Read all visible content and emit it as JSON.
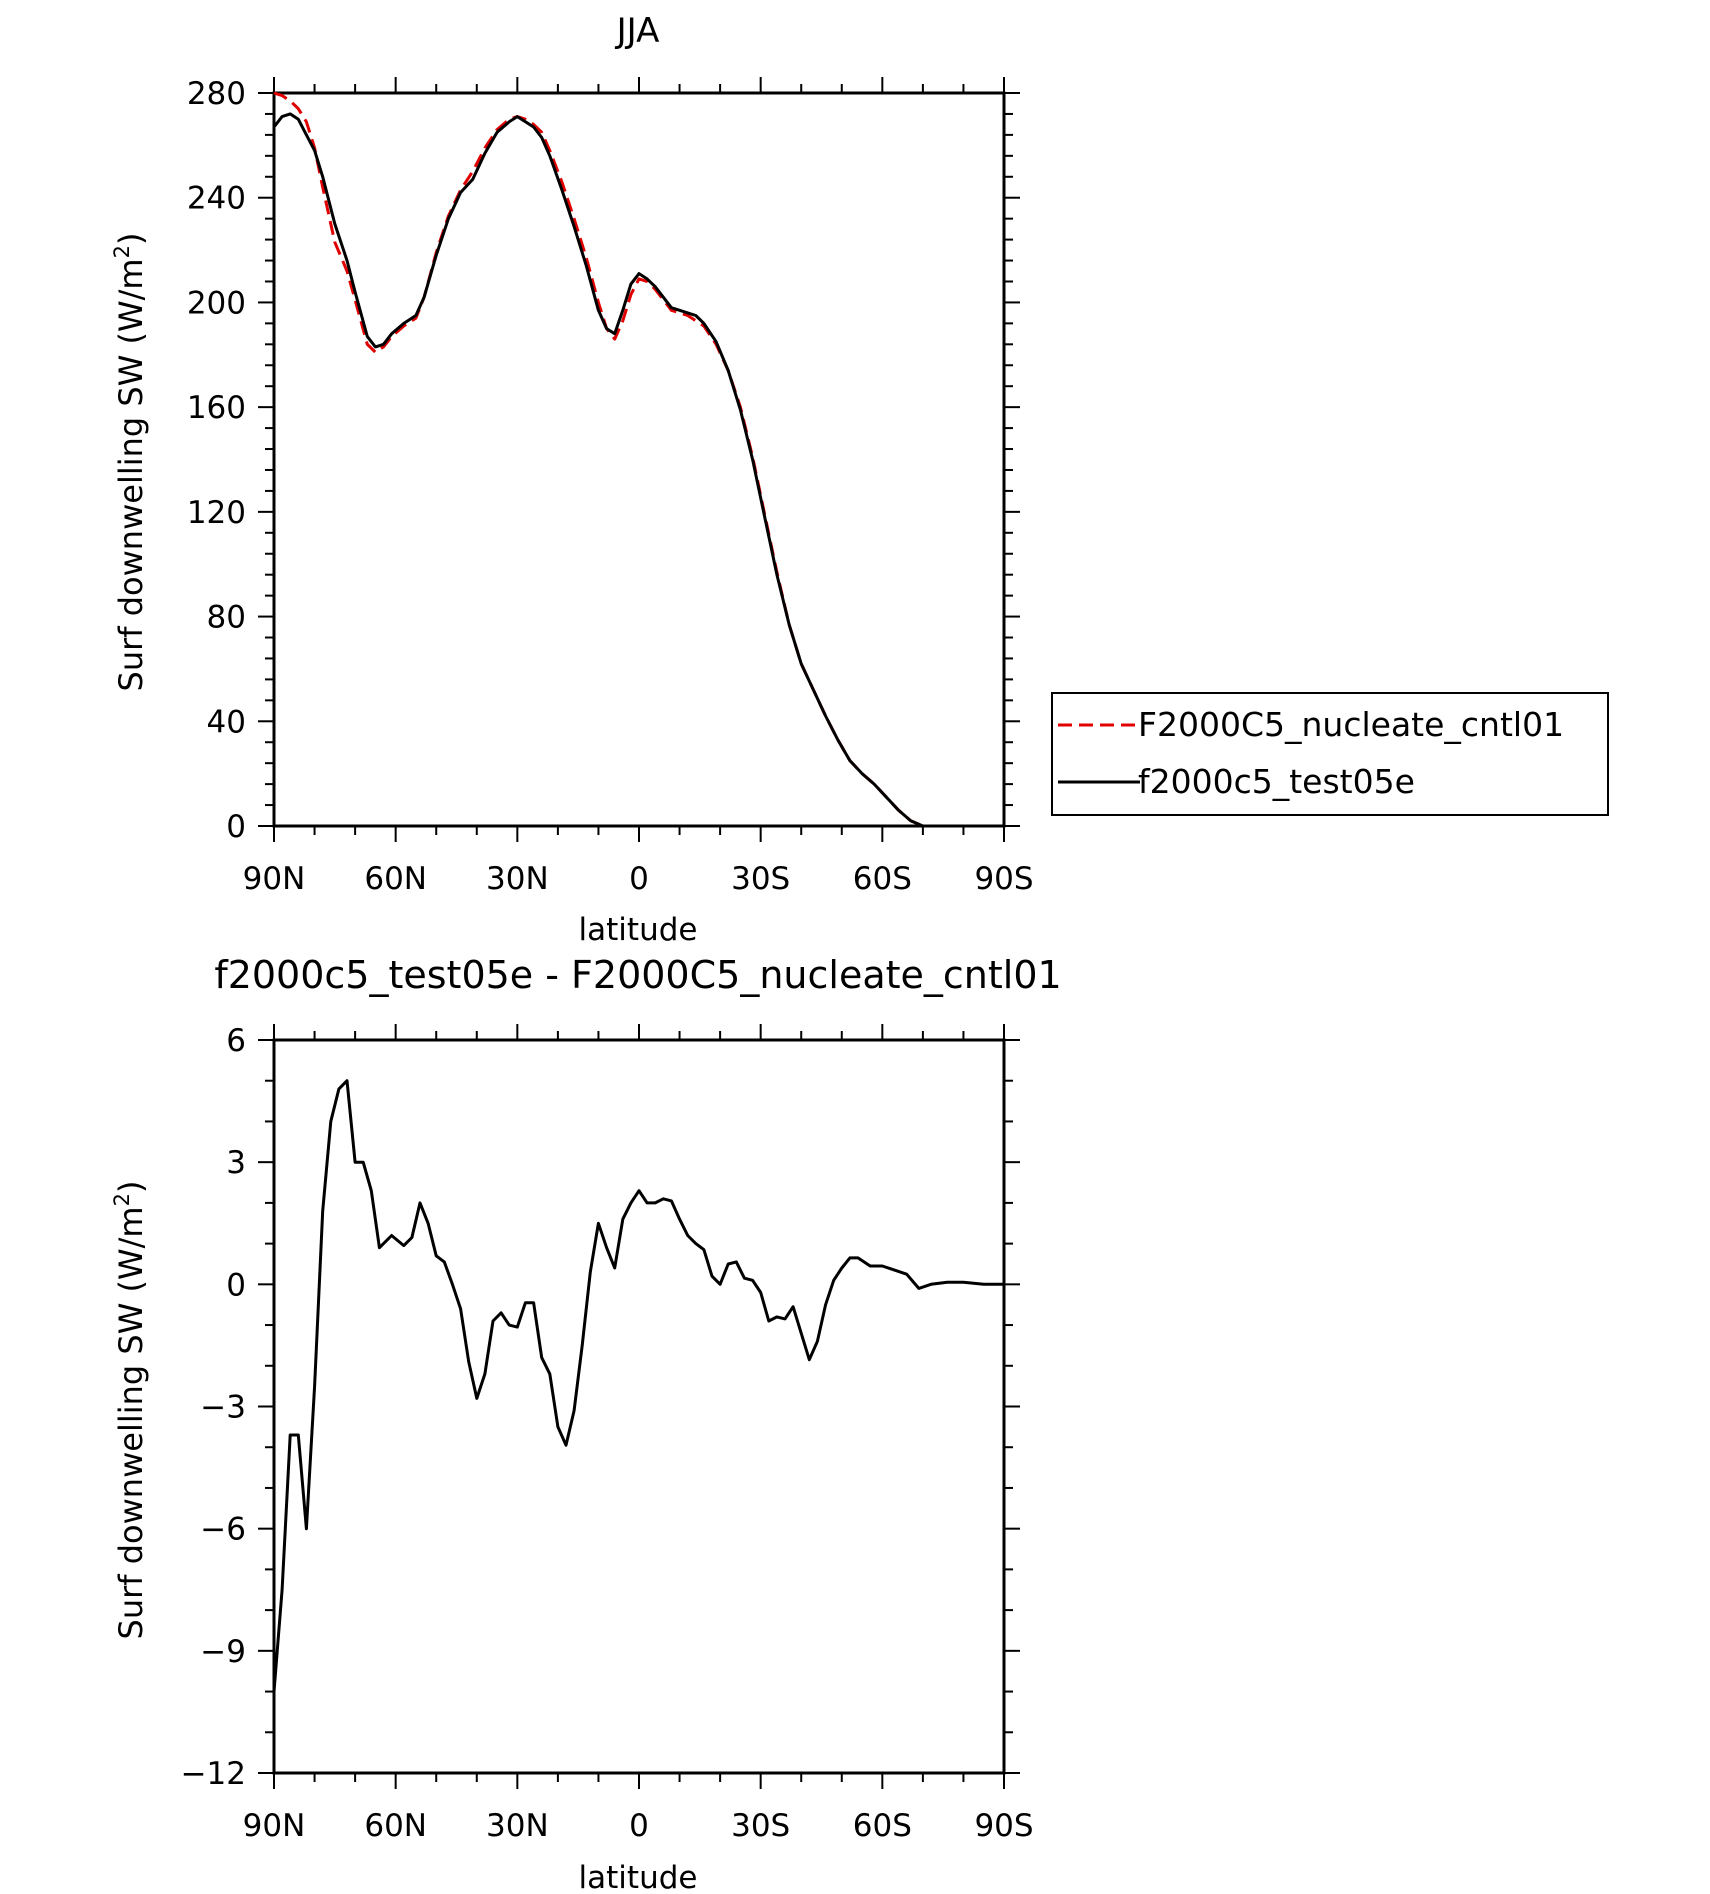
{
  "chart_data": [
    {
      "type": "line",
      "title": "JJA",
      "xlabel": "latitude",
      "ylabel": "Surf downwelling SW (W/m",
      "ylabel_sup": "2",
      "ylabel_close": ")",
      "xlim": [
        90,
        -90
      ],
      "ylim": [
        0,
        280
      ],
      "xticks": [
        90,
        60,
        30,
        0,
        -30,
        -60,
        -90
      ],
      "xtick_labels": [
        "90N",
        "60N",
        "30N",
        "0",
        "30S",
        "60S",
        "90S"
      ],
      "yticks": [
        0,
        40,
        80,
        120,
        160,
        200,
        240,
        280
      ],
      "ytick_labels": [
        "0",
        "40",
        "80",
        "120",
        "160",
        "200",
        "240",
        "280"
      ],
      "legend_position": "right",
      "series": [
        {
          "name": "F2000C5_nucleate_cntl01",
          "color": "#e00000",
          "dash": "dashed",
          "x": [
            90,
            88,
            86,
            84,
            82,
            80,
            78,
            75,
            72,
            70,
            67,
            65,
            63,
            61,
            58,
            55,
            53,
            50,
            47,
            44,
            41,
            38,
            35,
            32,
            30,
            28,
            26,
            24,
            22,
            19,
            16,
            13,
            10,
            8,
            6,
            4,
            2,
            0,
            -2,
            -4,
            -6,
            -8,
            -10,
            -12,
            -14,
            -16,
            -19,
            -22,
            -25,
            -28,
            -31,
            -34,
            -37,
            -40,
            -43,
            -46,
            -49,
            -52,
            -55,
            -58,
            -61,
            -64,
            -67,
            -70,
            -73,
            -76,
            -79,
            -82,
            -86,
            -90
          ],
          "y": [
            280,
            279,
            277,
            274,
            269,
            259,
            244,
            223,
            212,
            201,
            184,
            181,
            183,
            187,
            191,
            194,
            202,
            219,
            233,
            243,
            250,
            259,
            266,
            270,
            271,
            270,
            268,
            265,
            258,
            246,
            232,
            217,
            200,
            190,
            186,
            193,
            203,
            209,
            208,
            205,
            201,
            197,
            196,
            195,
            193,
            191,
            184,
            174,
            160,
            141,
            119,
            97,
            77,
            62,
            52,
            42,
            33,
            25,
            20,
            16,
            11,
            6,
            2,
            0,
            0,
            0,
            0,
            0,
            0,
            0
          ]
        },
        {
          "name": "f2000c5_test05e",
          "color": "#000000",
          "dash": "solid",
          "x": [
            90,
            88,
            86,
            84,
            82,
            80,
            78,
            75,
            72,
            70,
            67,
            65,
            63,
            61,
            58,
            55,
            53,
            50,
            47,
            44,
            41,
            38,
            35,
            32,
            30,
            28,
            26,
            24,
            22,
            19,
            16,
            13,
            10,
            8,
            6,
            4,
            2,
            0,
            -2,
            -4,
            -6,
            -8,
            -10,
            -12,
            -14,
            -16,
            -19,
            -22,
            -25,
            -28,
            -31,
            -34,
            -37,
            -40,
            -43,
            -46,
            -49,
            -52,
            -55,
            -58,
            -61,
            -64,
            -67,
            -70,
            -73,
            -76,
            -79,
            -82,
            -86,
            -90
          ],
          "y": [
            267,
            271,
            272,
            270,
            264,
            258,
            248,
            230,
            216,
            204,
            187,
            183,
            184,
            188,
            192,
            195,
            202,
            218,
            232,
            242,
            247,
            257,
            265,
            269,
            271,
            269,
            267,
            263,
            256,
            243,
            229,
            214,
            197,
            190,
            188,
            197,
            207,
            211,
            209,
            206,
            202,
            198,
            197,
            196,
            195,
            192,
            185,
            174,
            159,
            140,
            118,
            96,
            77,
            62,
            52,
            42,
            33,
            25,
            20,
            16,
            11,
            6,
            2,
            0,
            0,
            0,
            0,
            0,
            0,
            0
          ]
        }
      ]
    },
    {
      "type": "line",
      "title": "f2000c5_test05e - F2000C5_nucleate_cntl01",
      "xlabel": "latitude",
      "ylabel": "Surf downwelling SW (W/m",
      "ylabel_sup": "2",
      "ylabel_close": ")",
      "xlim": [
        90,
        -90
      ],
      "ylim": [
        -12,
        6
      ],
      "xticks": [
        90,
        60,
        30,
        0,
        -30,
        -60,
        -90
      ],
      "xtick_labels": [
        "90N",
        "60N",
        "30N",
        "0",
        "30S",
        "60S",
        "90S"
      ],
      "yticks": [
        -12,
        -9,
        -6,
        -3,
        0,
        3,
        6
      ],
      "ytick_labels": [
        "−12",
        "−9",
        "−6",
        "−3",
        "0",
        "3",
        "6"
      ],
      "series": [
        {
          "color": "#000000",
          "dash": "solid",
          "x": [
            90,
            88,
            86,
            84,
            82,
            80,
            78,
            76,
            74,
            72,
            70,
            68,
            66,
            64,
            61,
            58,
            56,
            54,
            52,
            50,
            48,
            46,
            44,
            42,
            40,
            38,
            36,
            34,
            32,
            30,
            28,
            26,
            24,
            22,
            20,
            18,
            16,
            14,
            12,
            10,
            8,
            6,
            4,
            2,
            0,
            -2,
            -4,
            -6,
            -8,
            -10,
            -12,
            -14,
            -16,
            -18,
            -20,
            -22,
            -24,
            -26,
            -28,
            -30,
            -32,
            -34,
            -36,
            -38,
            -40,
            -42,
            -44,
            -46,
            -48,
            -50,
            -52,
            -54,
            -57,
            -60,
            -63,
            -66,
            -69,
            -72,
            -76,
            -80,
            -85,
            -90
          ],
          "y": [
            -10,
            -7.5,
            -3.7,
            -3.7,
            -6.0,
            -2.5,
            1.8,
            4.0,
            4.8,
            5.0,
            3.0,
            3.0,
            2.3,
            0.9,
            1.2,
            0.95,
            1.15,
            2.0,
            1.5,
            0.7,
            0.55,
            0.0,
            -0.6,
            -1.9,
            -2.8,
            -2.2,
            -0.9,
            -0.7,
            -1.0,
            -1.05,
            -0.45,
            -0.45,
            -1.8,
            -2.2,
            -3.5,
            -3.95,
            -3.1,
            -1.5,
            0.3,
            1.5,
            0.9,
            0.4,
            1.6,
            2.0,
            2.3,
            2.0,
            2.0,
            2.1,
            2.05,
            1.6,
            1.2,
            1.0,
            0.85,
            0.2,
            0.0,
            0.5,
            0.55,
            0.15,
            0.1,
            -0.2,
            -0.9,
            -0.8,
            -0.85,
            -0.55,
            -1.2,
            -1.85,
            -1.4,
            -0.5,
            0.1,
            0.4,
            0.65,
            0.65,
            0.45,
            0.45,
            0.35,
            0.25,
            -0.1,
            0.0,
            0.05,
            0.05,
            0.0,
            0.0
          ]
        }
      ]
    }
  ]
}
